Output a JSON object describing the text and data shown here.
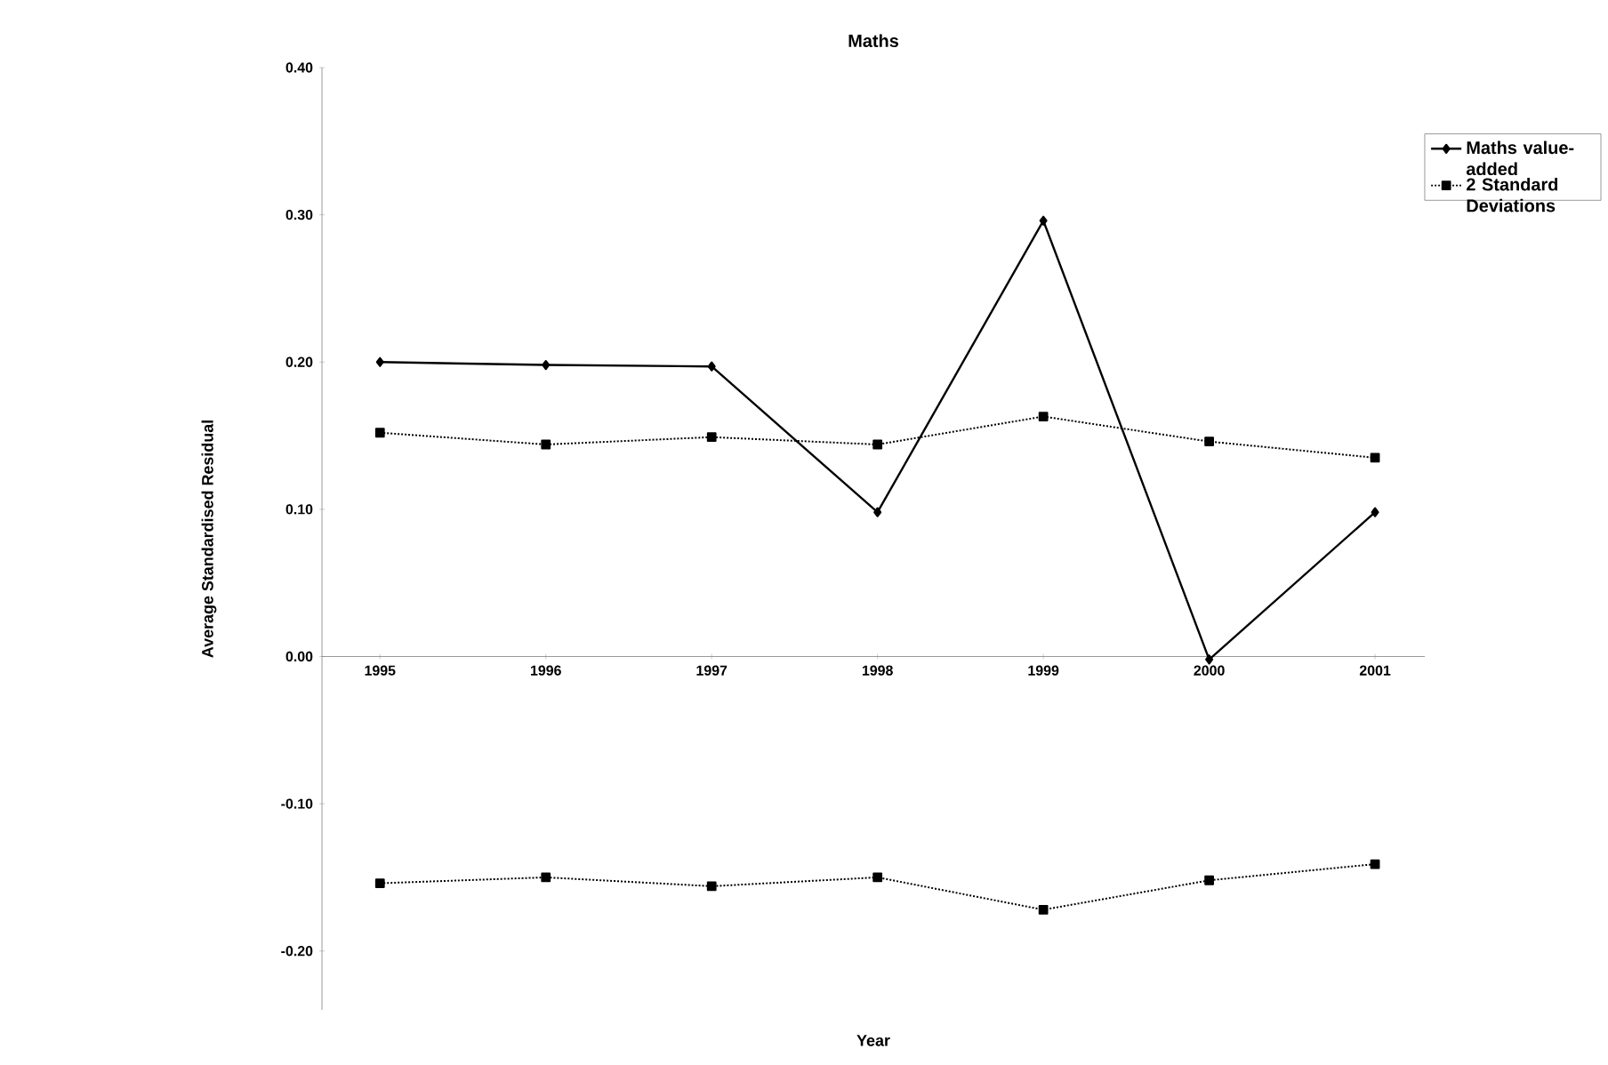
{
  "chart_data": {
    "type": "line",
    "title": "Maths",
    "xlabel": "Year",
    "ylabel": "Average Standardised Residual",
    "categories": [
      "1995",
      "1996",
      "1997",
      "1998",
      "1999",
      "2000",
      "2001"
    ],
    "series": [
      {
        "name": "Maths value-added",
        "color": "#000000",
        "marker": "diamond",
        "line_style": "solid",
        "values": [
          0.2,
          0.198,
          0.197,
          0.098,
          0.296,
          -0.002,
          0.098
        ]
      },
      {
        "name": "2 Standard Deviations",
        "color": "#000000",
        "marker": "square",
        "line_style": "dotted",
        "values": [
          0.152,
          0.144,
          0.149,
          0.144,
          0.163,
          0.146,
          0.135
        ]
      },
      {
        "color": "#000000",
        "marker": "square",
        "line_style": "dotted",
        "values": [
          -0.154,
          -0.15,
          -0.156,
          -0.15,
          -0.172,
          -0.152,
          -0.141
        ]
      }
    ],
    "ylim": [
      -0.24,
      0.4
    ],
    "yticks": [
      {
        "value": -0.2,
        "label": "-0.20"
      },
      {
        "value": -0.1,
        "label": "-0.10"
      },
      {
        "value": 0,
        "label": "0.00"
      },
      {
        "value": 0.1,
        "label": "0.10"
      },
      {
        "value": 0.2,
        "label": "0.20"
      },
      {
        "value": 0.3,
        "label": "0.30"
      },
      {
        "value": 0.4,
        "label": "0.40"
      }
    ],
    "legend": "top right",
    "grid": false
  }
}
